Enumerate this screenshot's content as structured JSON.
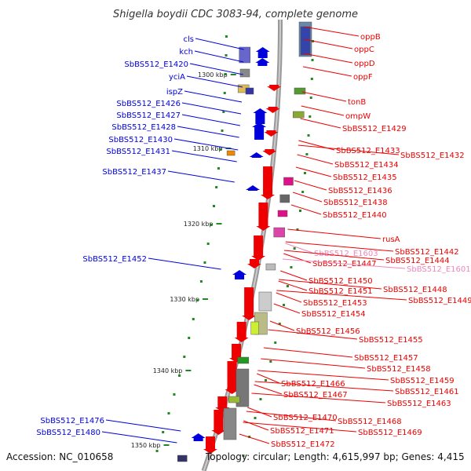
{
  "title": "Shigella boydii CDC 3083-94, complete genome",
  "footer": {
    "accession": "Accession: NC_010658",
    "topology": "Topology: circular; Length: 4,615,997 bp; Genes: 4,415"
  },
  "colors": {
    "forward_gene": "#0000dd",
    "reverse_gene": "#ee0000",
    "pseudo_gene": "#ee88bb",
    "backbone": "#888888",
    "tick": "#228822"
  },
  "kbp_ticks": [
    "1300 kbp",
    "1310 kbp",
    "1320 kbp",
    "1330 kbp",
    "1340 kbp",
    "1350 kbp"
  ],
  "left_labels": [
    "cls",
    "kch",
    "SbBS512_E1420",
    "yciA",
    "ispZ",
    "SbBS512_E1426",
    "SbBS512_E1427",
    "SbBS512_E1428",
    "SbBS512_E1430",
    "SbBS512_E1431",
    "SbBS512_E1437",
    "SbBS512_E1452",
    "SbBS512_E1476",
    "SbBS512_E1480"
  ],
  "right_labels": [
    "oppB",
    "oppC",
    "oppD",
    "oppF",
    "tonB",
    "ompW",
    "SbBS512_E1429",
    "SbBS512_E1433",
    "SbBS512_E1432",
    "SbBS512_E1434",
    "SbBS512_E1435",
    "SbBS512_E1436",
    "SbBS512_E1438",
    "SbBS512_E1440",
    "rusA",
    "SbBS512_E1442",
    "SbBS512_E1603",
    "SbBS512_E1447",
    "SbBS512_E1444",
    "SbBS512_E1601",
    "SbBS512_E1450",
    "SbBS512_E1451",
    "SbBS512_E1448",
    "SbBS512_E1449",
    "SbBS512_E1453",
    "SbBS512_E1454",
    "SbBS512_E1456",
    "SbBS512_E1455",
    "SbBS512_E1457",
    "SbBS512_E1458",
    "SbBS512_E1459",
    "SbBS512_E1466",
    "SbBS512_E1461",
    "SbBS512_E1467",
    "SbBS512_E1463",
    "SbBS512_E1470",
    "SbBS512_E1468",
    "SbBS512_E1471",
    "SbBS512_E1469",
    "SbBS512_E1472"
  ]
}
